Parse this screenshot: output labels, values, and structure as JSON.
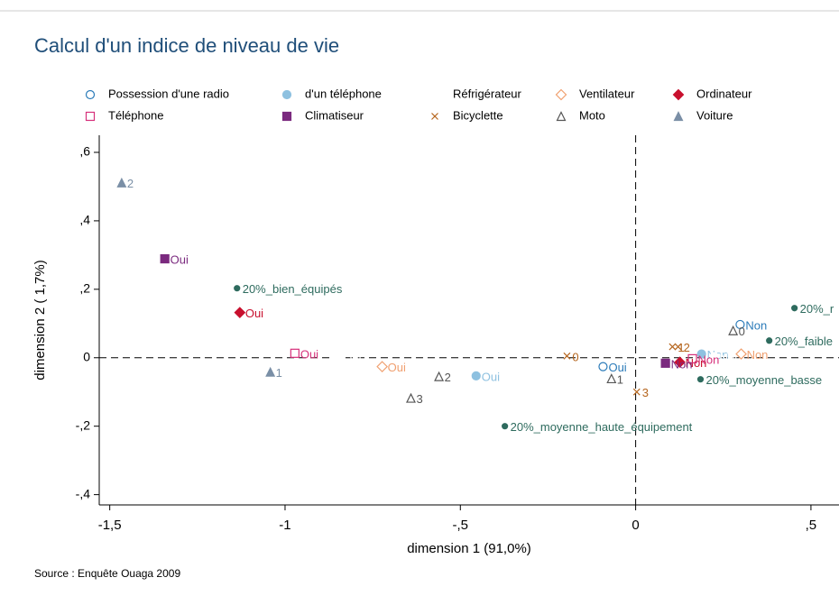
{
  "chart_data": {
    "type": "scatter",
    "title": "Calcul d'un indice de niveau de vie",
    "xlabel": "dimension 1 (91,0%)",
    "ylabel": "dimension 2 ( 1,7%)",
    "source": "Source : Enquête Ouaga 2009",
    "xlim": [
      -1.53,
      0.58
    ],
    "ylim": [
      -0.43,
      0.65
    ],
    "xticks": [
      {
        "value": -1.5,
        "label": "-1,5"
      },
      -1,
      {
        "value": -0.5,
        "label": "-,5"
      },
      0,
      {
        "value": 0.5,
        "label": ",5"
      }
    ],
    "yticks": [
      {
        "value": 0.6,
        "label": ",6"
      },
      {
        "value": 0.4,
        "label": ",4"
      },
      {
        "value": 0.2,
        "label": ",2"
      },
      0,
      {
        "value": -0.2,
        "label": "-,2"
      },
      {
        "value": -0.4,
        "label": "-,4"
      }
    ],
    "series": [
      {
        "name": "Possession d'une radio",
        "color": "#2b7bb9",
        "marker": "circle-open",
        "x": [
          -0.093,
          0.298
        ],
        "values": [
          -0.026,
          0.097
        ],
        "labels": [
          "Oui",
          "Non"
        ]
      },
      {
        "name": "d'un téléphone",
        "color": "#8ec1e0",
        "marker": "circle",
        "x": [
          -0.455,
          0.188
        ],
        "values": [
          -0.053,
          0.011
        ],
        "labels": [
          "Oui",
          "Non"
        ]
      },
      {
        "name": "Réfrigérateur",
        "color": "#ffffff",
        "marker": "circle",
        "x": [
          -0.85,
          0.224
        ],
        "values": [
          0.0,
          0.003
        ],
        "labels": [
          "Oui",
          "Non"
        ]
      },
      {
        "name": "Ventilateur",
        "color": "#f0a070",
        "marker": "diamond-open",
        "x": [
          -0.723,
          0.301
        ],
        "values": [
          -0.026,
          0.011
        ],
        "labels": [
          "Oui",
          "Non"
        ]
      },
      {
        "name": "Ordinateur",
        "color": "#c8102e",
        "marker": "diamond",
        "x": [
          -1.129,
          0.126
        ],
        "values": [
          0.132,
          -0.013
        ],
        "labels": [
          "Oui",
          "Non"
        ]
      },
      {
        "name": "Téléphone",
        "color": "#d6307a",
        "marker": "square-open",
        "x": [
          -0.972,
          0.162
        ],
        "values": [
          0.013,
          -0.003
        ],
        "labels": [
          "Oui",
          "Non"
        ]
      },
      {
        "name": "Climatiseur",
        "color": "#7b2a7f",
        "marker": "square",
        "x": [
          -1.343,
          0.085
        ],
        "values": [
          0.289,
          -0.016
        ],
        "labels": [
          "Oui",
          "Non"
        ]
      },
      {
        "name": "Bicyclette",
        "color": "#b5651d",
        "marker": "x",
        "x": [
          -0.196,
          0.105,
          0.121,
          0.003
        ],
        "values": [
          0.005,
          0.032,
          0.032,
          -0.1
        ],
        "labels": [
          "0",
          "1",
          "2",
          "3"
        ]
      },
      {
        "name": "Moto",
        "color": "#555555",
        "marker": "triangle-open",
        "x": [
          0.278,
          -0.069,
          -0.561,
          -0.641
        ],
        "values": [
          0.079,
          -0.061,
          -0.055,
          -0.118
        ],
        "labels": [
          "0",
          "1",
          "2",
          "3"
        ]
      },
      {
        "name": "Voiture",
        "color": "#7a8fa6",
        "marker": "triangle",
        "x": [
          -1.042,
          -1.466
        ],
        "values": [
          -0.042,
          0.511
        ],
        "labels": [
          "1",
          "2"
        ]
      },
      {
        "color": "#2e6b5e",
        "marker": "dot",
        "x": [
          -1.137,
          -0.373,
          0.185,
          0.381,
          0.453
        ],
        "values": [
          0.203,
          -0.2,
          -0.063,
          0.05,
          0.145
        ],
        "labels": [
          "20%_bien_équipés",
          "20%_moyenne_haute_équipement",
          "20%_moyenne_basse",
          "20%_faible",
          "20%_r"
        ]
      }
    ]
  }
}
